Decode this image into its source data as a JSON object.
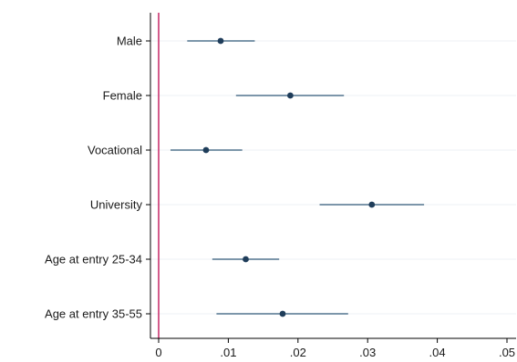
{
  "chart_data": {
    "type": "scatter",
    "subtype": "coefficient-plot",
    "title": "",
    "xlabel": "",
    "ylabel": "",
    "xlim": [
      0,
      0.05
    ],
    "x_ticks": [
      0,
      0.01,
      0.02,
      0.03,
      0.04,
      0.05
    ],
    "x_tick_labels": [
      "0",
      ".01",
      ".02",
      ".03",
      ".04",
      ".05"
    ],
    "reference_line": {
      "x": 0,
      "color": "#c2185b"
    },
    "grid": true,
    "legend": "none",
    "categories": [
      "Male",
      "Female",
      "Vocational",
      "University",
      "Age at entry 25-34",
      "Age at entry 35-55"
    ],
    "points": [
      {
        "label": "Male",
        "estimate": 0.0089,
        "ci_low": 0.0041,
        "ci_high": 0.0138
      },
      {
        "label": "Female",
        "estimate": 0.0189,
        "ci_low": 0.0111,
        "ci_high": 0.0266
      },
      {
        "label": "Vocational",
        "estimate": 0.0068,
        "ci_low": 0.0017,
        "ci_high": 0.012
      },
      {
        "label": "University",
        "estimate": 0.0306,
        "ci_low": 0.0231,
        "ci_high": 0.0381
      },
      {
        "label": "Age at entry 25-34",
        "estimate": 0.0125,
        "ci_low": 0.0077,
        "ci_high": 0.0173
      },
      {
        "label": "Age at entry 35-55",
        "estimate": 0.0178,
        "ci_low": 0.0083,
        "ci_high": 0.0272
      }
    ],
    "colors": {
      "marker": "#1f3d5a",
      "ci_line": "#2f5777",
      "grid": "#eef1f4",
      "axis": "#000000"
    }
  }
}
